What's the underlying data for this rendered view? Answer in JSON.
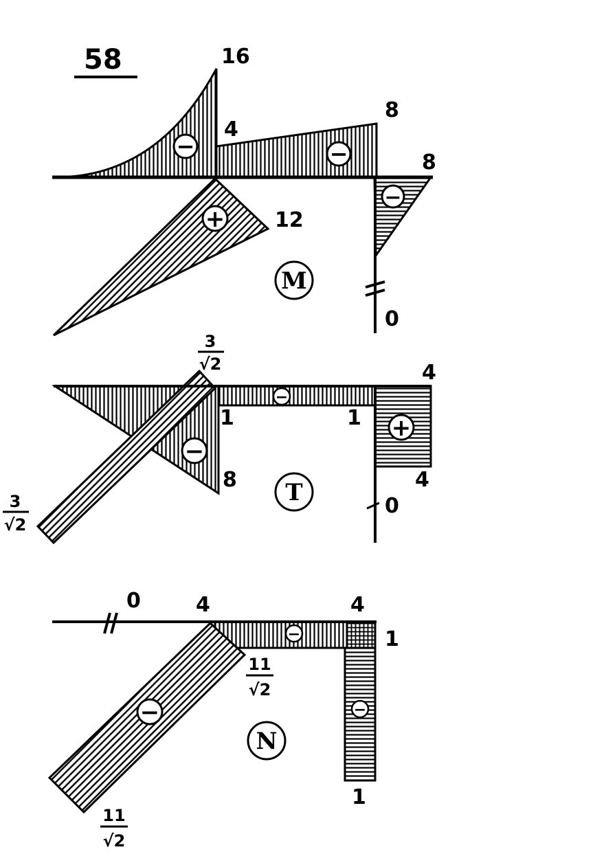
{
  "figure_number": "58",
  "colors": {
    "ink": "#000000",
    "paper": "#ffffff"
  },
  "diagrams": [
    {
      "id": "M",
      "label": "M",
      "values": [
        "16",
        "4",
        "8",
        "8",
        "12",
        "0"
      ],
      "signs": [
        "−",
        "−",
        "+",
        "−"
      ]
    },
    {
      "id": "T",
      "label": "T",
      "values": [
        "1",
        "1",
        "4",
        "4",
        "8",
        "0"
      ],
      "fractions": [
        {
          "num": "3",
          "den": "√2"
        },
        {
          "num": "3",
          "den": "√2"
        }
      ],
      "signs": [
        "−",
        "−",
        "+"
      ]
    },
    {
      "id": "N",
      "label": "N",
      "values": [
        "0",
        "4",
        "4",
        "1",
        "1"
      ],
      "fractions": [
        {
          "num": "11",
          "den": "√2"
        },
        {
          "num": "11",
          "den": "√2"
        }
      ],
      "signs": [
        "−",
        "−",
        "−"
      ]
    }
  ]
}
